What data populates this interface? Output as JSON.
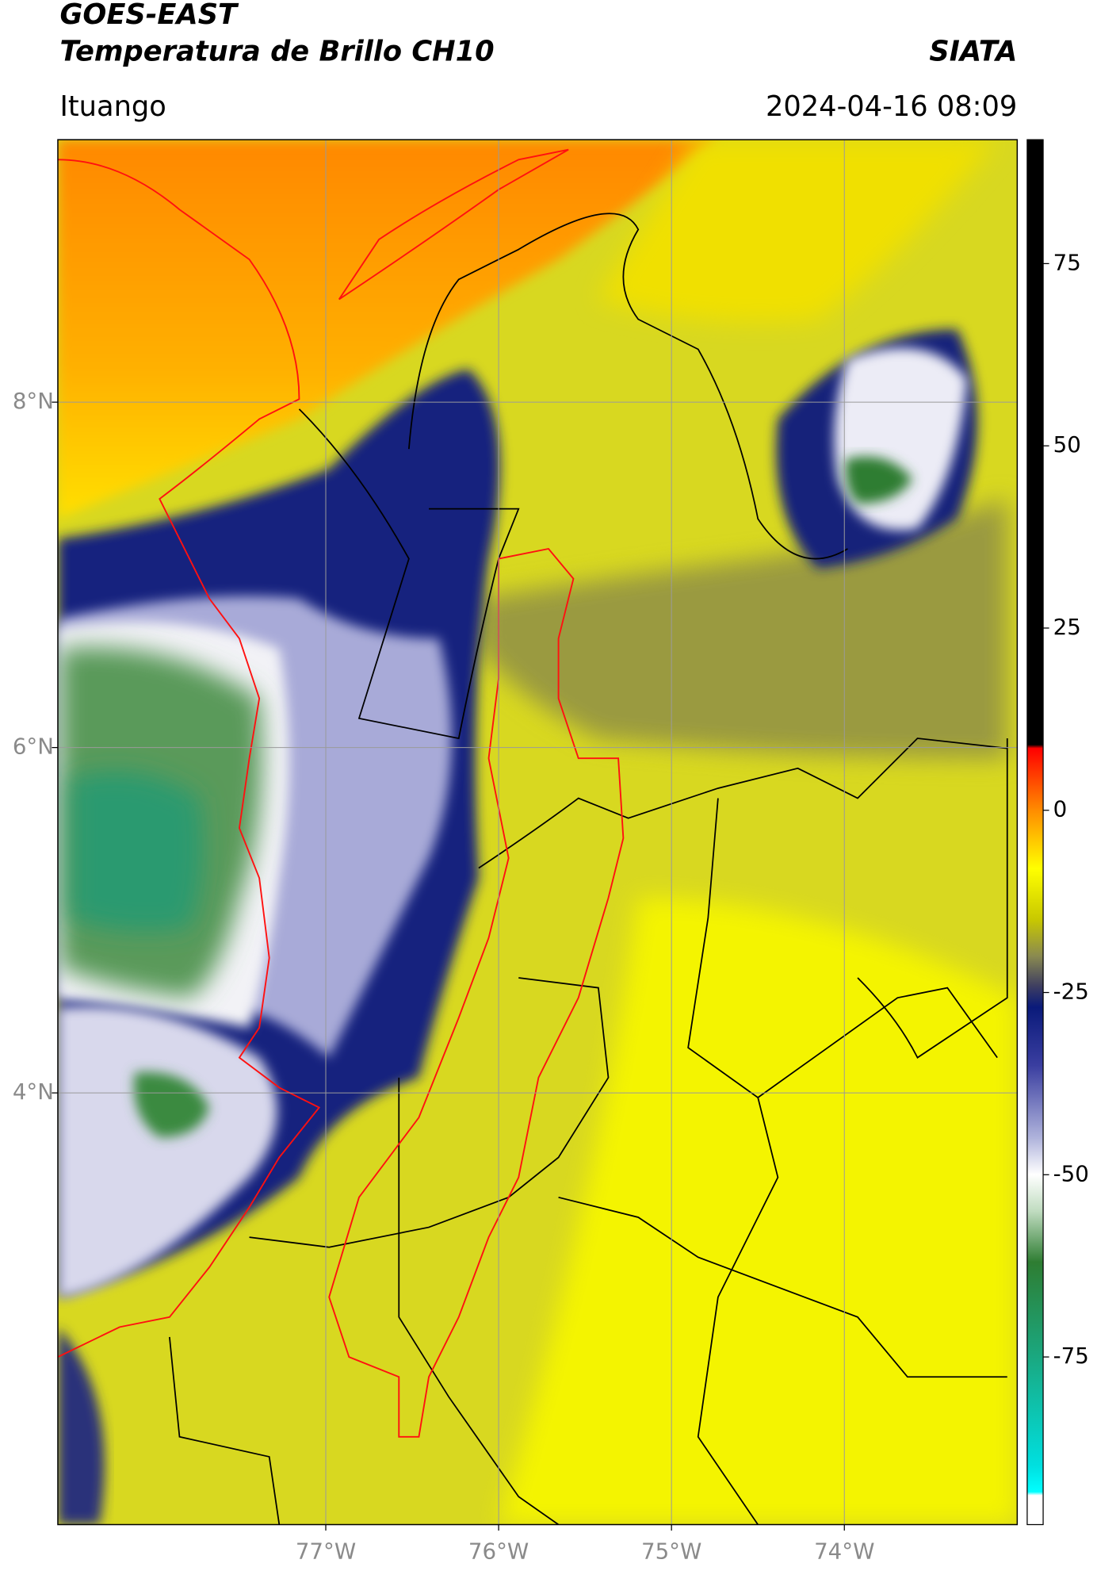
{
  "header": {
    "satellite": "GOES-EAST",
    "product": "Temperatura de Brillo CH10",
    "agency": "SIATA",
    "region": "Ituango",
    "datetime": "2024-04-16 08:09"
  },
  "chart_data": {
    "type": "map",
    "xlim": [
      -78.55,
      -73.0
    ],
    "xticks": [
      {
        "value": -77,
        "label": "77°W"
      },
      {
        "value": -76,
        "label": "76°W"
      },
      {
        "value": -75,
        "label": "75°W"
      },
      {
        "value": -74,
        "label": "74°W"
      }
    ],
    "ylim": [
      1.5,
      9.52
    ],
    "yticks": [
      {
        "value": 4,
        "label": "4°N"
      },
      {
        "value": 6,
        "label": "6°N"
      },
      {
        "value": 8,
        "label": "8°N"
      }
    ],
    "grid": true,
    "grid_color": "#9a9a9a",
    "colorbar": {
      "lim": [
        -98,
        92
      ],
      "ticks": [
        -75,
        -50,
        -25,
        0,
        25,
        50,
        75
      ],
      "stops": [
        {
          "value": 92,
          "color": "#000000"
        },
        {
          "value": 9,
          "color": "#000000"
        },
        {
          "value": 8.5,
          "color": "#ff0000"
        },
        {
          "value": 0,
          "color": "#ff8c00"
        },
        {
          "value": -8,
          "color": "#ffff00"
        },
        {
          "value": -15,
          "color": "#c8c800"
        },
        {
          "value": -20,
          "color": "#8a8a50"
        },
        {
          "value": -24,
          "color": "#404060"
        },
        {
          "value": -27,
          "color": "#0a1a7a"
        },
        {
          "value": -35,
          "color": "#3a3ea0"
        },
        {
          "value": -45,
          "color": "#b0b4dc"
        },
        {
          "value": -50,
          "color": "#ffffff"
        },
        {
          "value": -55,
          "color": "#c0dcc0"
        },
        {
          "value": -62,
          "color": "#2e7d32"
        },
        {
          "value": -75,
          "color": "#1aa880"
        },
        {
          "value": -90,
          "color": "#00e0e0"
        },
        {
          "value": -93.5,
          "color": "#00ffff"
        },
        {
          "value": -94,
          "color": "#ffffff"
        },
        {
          "value": -98,
          "color": "#ffffff"
        }
      ]
    }
  }
}
